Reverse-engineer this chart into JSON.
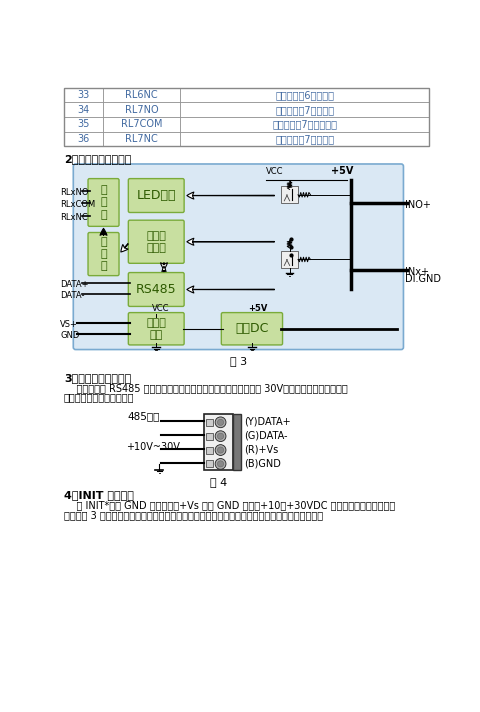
{
  "table_rows": [
    [
      "33",
      "RL6NC",
      "继电器输出6通道常闭"
    ],
    [
      "34",
      "RL7NO",
      "继电器输出7通道常开"
    ],
    [
      "35",
      "RL7COM",
      "继电器输出7通道公共端"
    ],
    [
      "36",
      "RL7NC",
      "继电器输出7通道常闭"
    ]
  ],
  "section2_title": "2、模块内部结构框图",
  "fig3_label": "图 3",
  "section3_title": "3、电源及通讯线连接",
  "section3_text1": "    电源输入及 RS485 通讯接口如下图所示，输入电源的最大电压为 30V，超过量程范围可能会造",
  "section3_text2": "成模块电路的永久性损坏。",
  "fig4_485label": "485电平",
  "fig4_10v30v": "+10V~30V",
  "fig4_right_labels": [
    "(Y)DATA+",
    "(G)DATA-",
    "(R)+Vs",
    "(B)GND"
  ],
  "fig4_label": "图 4",
  "section4_title": "4、INIT 模式说明",
  "section4_text1": "    将 INIT*脚与 GND 脚短接，在+Vs 端和 GND 端间加+10～+30VDC 电压，上电后模块指示灯",
  "section4_text2": "快速闪烁 3 次，待指示灯闪烁停止后，此时模块已经完成复位，断电上电，模块恢复出厂设置，默",
  "text_color": "#4169a0",
  "green_box_color": "#7aab3a",
  "green_box_bg": "#c8dfa0",
  "diagram_bg": "#dae8f4",
  "diagram_border": "#7aaad0",
  "table_text_color": "#4169a0",
  "table_border_color": "#888888"
}
